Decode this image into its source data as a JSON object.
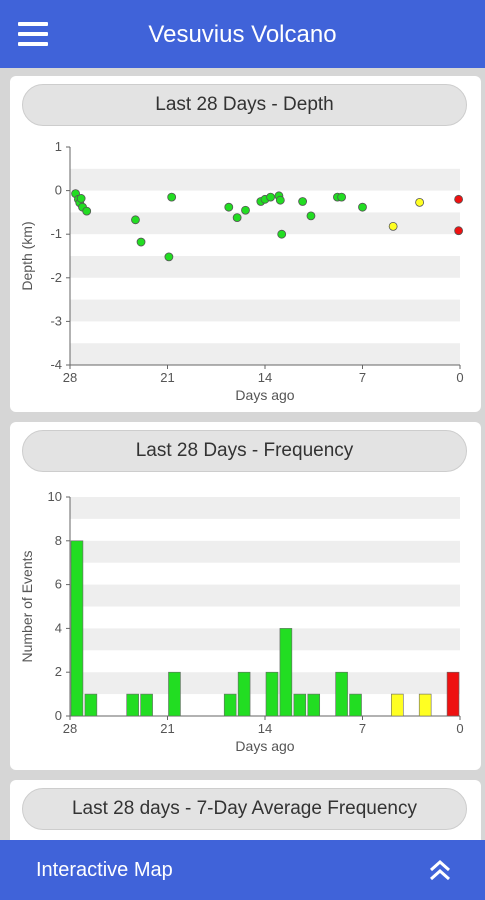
{
  "app_bar": {
    "title": "Vesuvius Volcano",
    "menu_icon": "menu-icon",
    "color": "#4063d9"
  },
  "cards": [
    {
      "title": "Last 28 Days - Depth"
    },
    {
      "title": "Last 28 Days - Frequency"
    },
    {
      "title": "Last 28 days - 7-Day Average Frequency"
    }
  ],
  "bottom_bar": {
    "label": "Interactive Map",
    "icon": "double-chevron-up-icon"
  },
  "status_colors": {
    "green": "#22dd22",
    "yellow": "#ffff22",
    "red": "#ee1111"
  },
  "chart_data": [
    {
      "type": "scatter",
      "xlabel": "Days ago",
      "ylabel": "Depth (km)",
      "xlim": [
        28,
        0
      ],
      "ylim": [
        -4,
        1
      ],
      "x_ticks": [
        "28",
        "21",
        "14",
        "7",
        "0"
      ],
      "y_ticks": [
        "1",
        "0",
        "-1",
        "-2",
        "-3",
        "-4"
      ],
      "points": [
        {
          "x": 27.6,
          "y": -0.07,
          "c": "green"
        },
        {
          "x": 27.4,
          "y": -0.2,
          "c": "green"
        },
        {
          "x": 27.3,
          "y": -0.28,
          "c": "green"
        },
        {
          "x": 27.2,
          "y": -0.18,
          "c": "green"
        },
        {
          "x": 27.1,
          "y": -0.38,
          "c": "green"
        },
        {
          "x": 26.8,
          "y": -0.47,
          "c": "green"
        },
        {
          "x": 23.3,
          "y": -0.67,
          "c": "green"
        },
        {
          "x": 22.9,
          "y": -1.18,
          "c": "green"
        },
        {
          "x": 20.9,
          "y": -1.52,
          "c": "green"
        },
        {
          "x": 20.7,
          "y": -0.15,
          "c": "green"
        },
        {
          "x": 16.6,
          "y": -0.38,
          "c": "green"
        },
        {
          "x": 16.0,
          "y": -0.62,
          "c": "green"
        },
        {
          "x": 15.4,
          "y": -0.45,
          "c": "green"
        },
        {
          "x": 14.3,
          "y": -0.25,
          "c": "green"
        },
        {
          "x": 14.0,
          "y": -0.2,
          "c": "green"
        },
        {
          "x": 13.6,
          "y": -0.15,
          "c": "green"
        },
        {
          "x": 13.0,
          "y": -0.12,
          "c": "green"
        },
        {
          "x": 12.9,
          "y": -0.22,
          "c": "green"
        },
        {
          "x": 12.8,
          "y": -1.0,
          "c": "green"
        },
        {
          "x": 11.3,
          "y": -0.25,
          "c": "green"
        },
        {
          "x": 10.7,
          "y": -0.58,
          "c": "green"
        },
        {
          "x": 8.8,
          "y": -0.15,
          "c": "green"
        },
        {
          "x": 8.5,
          "y": -0.15,
          "c": "green"
        },
        {
          "x": 7.0,
          "y": -0.38,
          "c": "green"
        },
        {
          "x": 4.8,
          "y": -0.82,
          "c": "yellow"
        },
        {
          "x": 2.9,
          "y": -0.27,
          "c": "yellow"
        },
        {
          "x": 0.1,
          "y": -0.2,
          "c": "red"
        },
        {
          "x": 0.1,
          "y": -0.92,
          "c": "red"
        }
      ]
    },
    {
      "type": "bar",
      "xlabel": "Days ago",
      "ylabel": "Number of Events",
      "xlim": [
        28,
        0
      ],
      "ylim": [
        0,
        10
      ],
      "x_ticks": [
        "28",
        "21",
        "14",
        "7",
        "0"
      ],
      "y_ticks": [
        "10",
        "8",
        "6",
        "4",
        "2",
        "0"
      ],
      "bars": [
        {
          "day": 27.5,
          "value": 8,
          "c": "green"
        },
        {
          "day": 26.5,
          "value": 1,
          "c": "green"
        },
        {
          "day": 23.5,
          "value": 1,
          "c": "green"
        },
        {
          "day": 22.5,
          "value": 1,
          "c": "green"
        },
        {
          "day": 20.5,
          "value": 2,
          "c": "green"
        },
        {
          "day": 16.5,
          "value": 1,
          "c": "green"
        },
        {
          "day": 15.5,
          "value": 2,
          "c": "green"
        },
        {
          "day": 13.5,
          "value": 2,
          "c": "green"
        },
        {
          "day": 12.5,
          "value": 4,
          "c": "green"
        },
        {
          "day": 11.5,
          "value": 1,
          "c": "green"
        },
        {
          "day": 10.5,
          "value": 1,
          "c": "green"
        },
        {
          "day": 8.5,
          "value": 2,
          "c": "green"
        },
        {
          "day": 7.5,
          "value": 1,
          "c": "green"
        },
        {
          "day": 4.5,
          "value": 1,
          "c": "yellow"
        },
        {
          "day": 2.5,
          "value": 1,
          "c": "yellow"
        },
        {
          "day": 0.5,
          "value": 2,
          "c": "red"
        }
      ]
    }
  ]
}
